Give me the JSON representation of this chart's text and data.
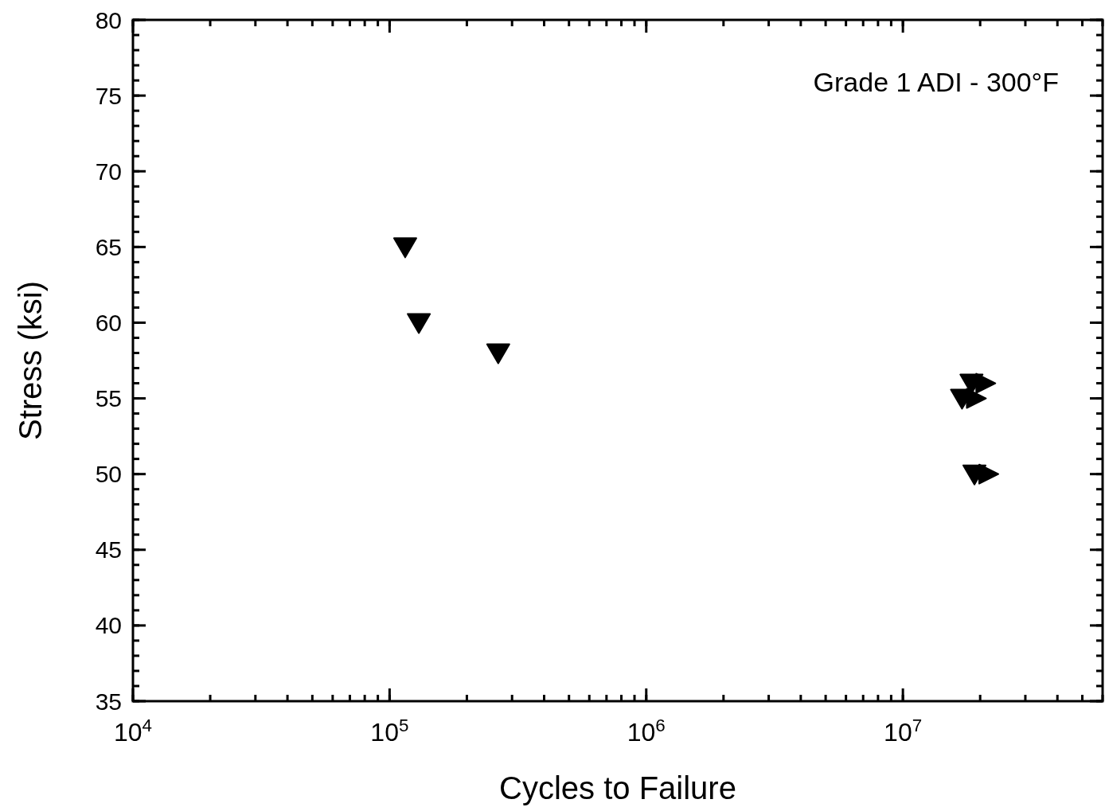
{
  "chart_data": {
    "type": "scatter",
    "title": "Grade 1 ADI - 300°F",
    "xlabel": "Cycles to Failure",
    "ylabel": "Stress (ksi)",
    "log": "x",
    "xlim": [
      10000,
      60000000
    ],
    "xticks": [
      {
        "value": 10000,
        "label": "10$^{4}$"
      },
      {
        "value": 100000,
        "label": "10$^{5}$"
      },
      {
        "value": 1000000,
        "label": "10$^{6}$"
      },
      {
        "value": 10000000,
        "label": "10$^{7}$"
      }
    ],
    "ylim": [
      35,
      80
    ],
    "yticks": [
      35,
      40,
      45,
      50,
      55,
      60,
      65,
      70,
      75,
      80
    ],
    "marker": "triangle",
    "grid": false,
    "series": [
      {
        "color": "#000000",
        "x": [
          115000,
          130000,
          265000
        ],
        "values": [
          65,
          60,
          58
        ]
      },
      {
        "color": "#000000",
        "x": [
          17000000,
          18500000,
          19000000
        ],
        "values": [
          55,
          56,
          50
        ]
      }
    ]
  }
}
